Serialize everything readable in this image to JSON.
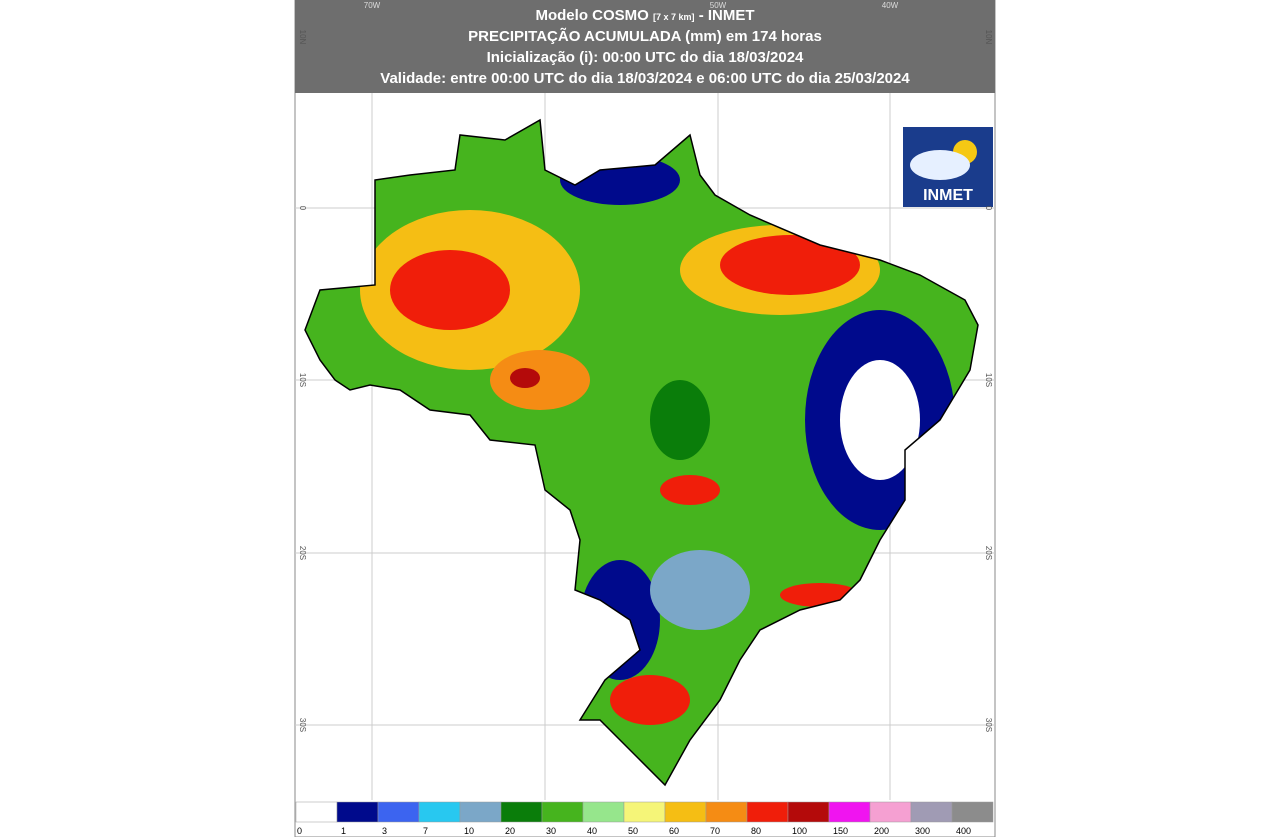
{
  "header": {
    "model": "Modelo COSMO",
    "resolution": "[7 x 7 km]",
    "source": "- INMET",
    "line2": "PRECIPITAÇÃO ACUMULADA (mm) em 174 horas",
    "line3": "Inicialização (i): 00:00 UTC do dia 18/03/2024",
    "line4": "Validade: entre 00:00 UTC do dia 18/03/2024 e 06:00 UTC do dia 25/03/2024"
  },
  "logo": "INMET",
  "lon_labels": [
    "70W",
    "50W",
    "40W"
  ],
  "lat_labels": [
    "10N",
    "0",
    "10S",
    "20S",
    "30S"
  ],
  "legend": [
    {
      "label": 0,
      "color": "#ffffff"
    },
    {
      "label": 1,
      "color": "#000a8c"
    },
    {
      "label": 3,
      "color": "#3c64f0"
    },
    {
      "label": 7,
      "color": "#28c8f0"
    },
    {
      "label": 10,
      "color": "#7ba7c8"
    },
    {
      "label": 20,
      "color": "#0a7d0a"
    },
    {
      "label": 30,
      "color": "#46b41e"
    },
    {
      "label": 40,
      "color": "#96e68c"
    },
    {
      "label": 50,
      "color": "#f5f578"
    },
    {
      "label": 60,
      "color": "#f5be14"
    },
    {
      "label": 70,
      "color": "#f58c14"
    },
    {
      "label": 80,
      "color": "#f01e0a"
    },
    {
      "label": 100,
      "color": "#b40a0a"
    },
    {
      "label": 150,
      "color": "#f014f0"
    },
    {
      "label": 200,
      "color": "#f5a0d2"
    },
    {
      "label": 300,
      "color": "#a09bb4"
    },
    {
      "label": 400,
      "color": "#8c8c8c"
    }
  ]
}
